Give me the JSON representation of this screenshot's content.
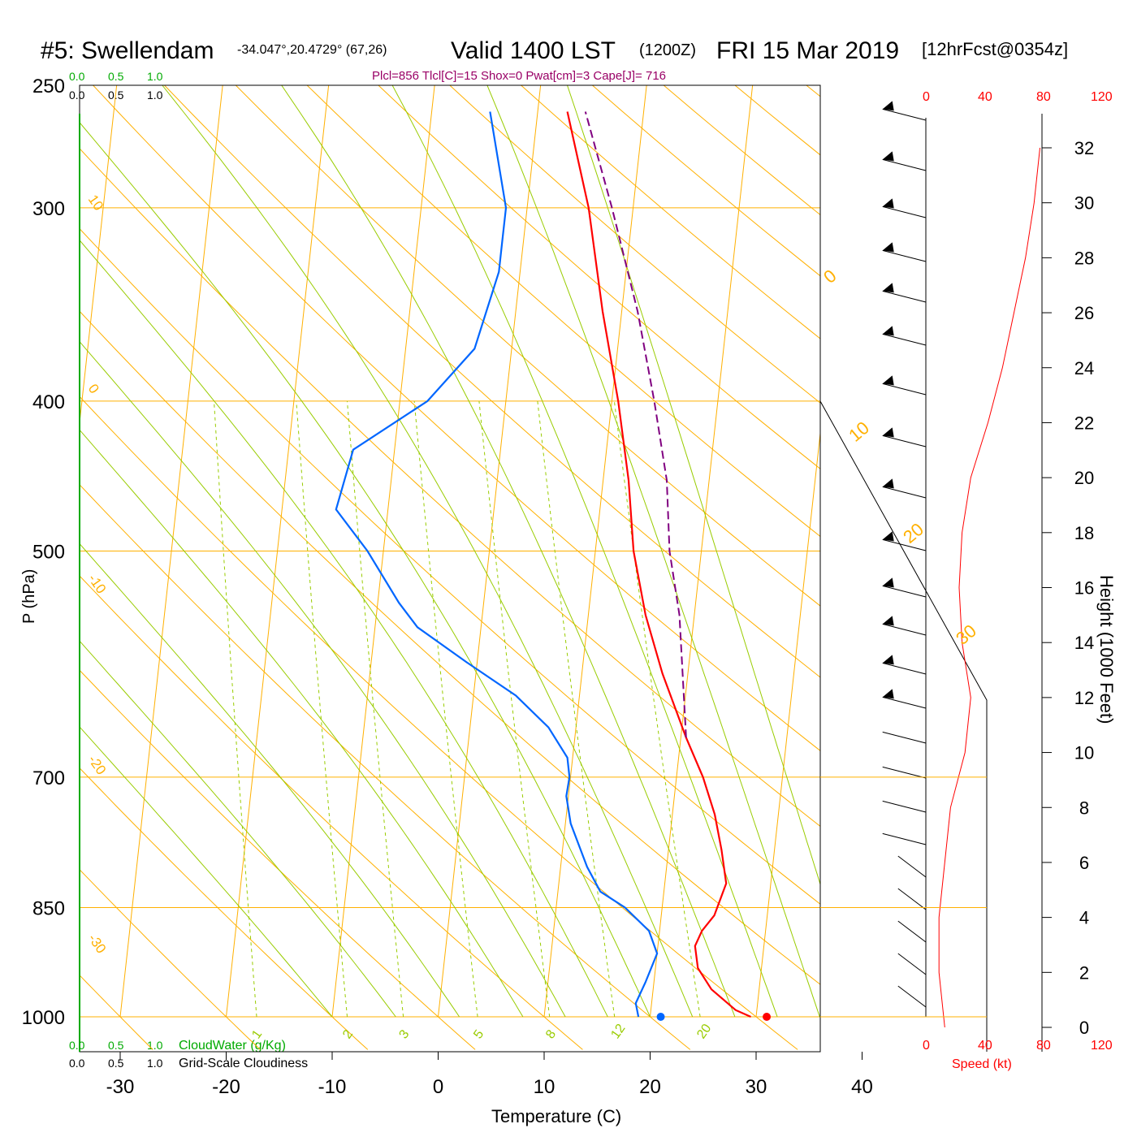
{
  "header": {
    "station": "#5: Swellendam",
    "coords": "-34.047°,20.4729° (67,26)",
    "valid": "Valid 1400 LST",
    "utc": "(1200Z)",
    "date": "FRI 15 Mar 2019",
    "forecast": "[12hrFcst@0354z]",
    "params": "Plcl=856 Tlcl[C]=15 Shox=0 Pwat[cm]=3 Cape[J]= 716"
  },
  "colors": {
    "temperature": "#ff0000",
    "dewpoint": "#0066ff",
    "parcel": "#800080",
    "isotherm": "#ffb000",
    "adiabat": "#99cc00",
    "cloud_green": "#00aa00",
    "params": "#990066"
  },
  "chart_data": {
    "type": "line",
    "title": "#5: Swellendam",
    "xlabel": "Temperature (C)",
    "ylabel": "P (hPa)",
    "xlim": [
      -34,
      46
    ],
    "log_pressure_axis": true,
    "pressure_ticks": [
      "250",
      "300",
      "400",
      "500",
      "700",
      "850",
      "1000"
    ],
    "temperature_ticks": [
      "-30",
      "-20",
      "-10",
      "0",
      "10",
      "20",
      "30",
      "40"
    ],
    "isotherm_labels": [
      "10",
      "0",
      "-10",
      "-20",
      "-30",
      "0",
      "10",
      "20",
      "30"
    ],
    "mixing_ratio_labels": [
      "1",
      "2",
      "3",
      "5",
      "8",
      "12",
      "20"
    ],
    "series": [
      {
        "key": "temperature",
        "points": [
          [
            1000,
            29.5
          ],
          [
            990,
            28
          ],
          [
            960,
            25.5
          ],
          [
            930,
            24
          ],
          [
            900,
            23.5
          ],
          [
            880,
            24
          ],
          [
            860,
            25
          ],
          [
            820,
            25.8
          ],
          [
            780,
            25
          ],
          [
            740,
            24
          ],
          [
            700,
            22.5
          ],
          [
            660,
            20.5
          ],
          [
            600,
            17.6
          ],
          [
            550,
            15.4
          ],
          [
            500,
            13.6
          ],
          [
            450,
            12.4
          ],
          [
            400,
            10.6
          ],
          [
            350,
            8.2
          ],
          [
            300,
            5.8
          ],
          [
            260,
            2.8
          ]
        ]
      },
      {
        "key": "dewpoint",
        "points": [
          [
            1000,
            18.9
          ],
          [
            980,
            18.5
          ],
          [
            950,
            19.2
          ],
          [
            910,
            20
          ],
          [
            880,
            19
          ],
          [
            850,
            16.5
          ],
          [
            830,
            14
          ],
          [
            800,
            12.5
          ],
          [
            750,
            10.5
          ],
          [
            720,
            9.8
          ],
          [
            700,
            9.9
          ],
          [
            680,
            9.5
          ],
          [
            650,
            7.4
          ],
          [
            620,
            4
          ],
          [
            590,
            -1
          ],
          [
            560,
            -6
          ],
          [
            540,
            -8
          ],
          [
            500,
            -11.5
          ],
          [
            470,
            -14.9
          ],
          [
            430,
            -13.9
          ],
          [
            400,
            -7.4
          ],
          [
            370,
            -3.5
          ],
          [
            330,
            -2
          ],
          [
            315,
            -2
          ],
          [
            300,
            -2
          ],
          [
            260,
            -4.5
          ]
        ]
      },
      {
        "key": "parcel",
        "points": [
          [
            660,
            20.5
          ],
          [
            600,
            19.5
          ],
          [
            550,
            18.6
          ],
          [
            500,
            17
          ],
          [
            450,
            16
          ],
          [
            400,
            14
          ],
          [
            350,
            11.5
          ],
          [
            300,
            8
          ],
          [
            260,
            4.5
          ]
        ]
      }
    ],
    "surface_temperature": 31,
    "surface_dewpoint": 21,
    "wind_axis": {
      "speed_ticks": [
        "0",
        "40",
        "80",
        "120"
      ],
      "label": "Speed (kt)"
    },
    "height_axis": {
      "label": "Height (1000 Feet)",
      "ticks": [
        "0",
        "2",
        "4",
        "6",
        "8",
        "10",
        "12",
        "14",
        "16",
        "18",
        "20",
        "22",
        "24",
        "26",
        "28",
        "30",
        "32"
      ]
    },
    "wind_speed_profile_kt": [
      [
        0,
        12
      ],
      [
        2,
        8
      ],
      [
        4,
        8
      ],
      [
        6,
        12
      ],
      [
        8,
        16
      ],
      [
        10,
        26
      ],
      [
        12,
        30
      ],
      [
        14,
        24
      ],
      [
        16,
        22
      ],
      [
        18,
        24
      ],
      [
        20,
        30
      ],
      [
        22,
        42
      ],
      [
        24,
        52
      ],
      [
        26,
        60
      ],
      [
        28,
        68
      ],
      [
        30,
        74
      ],
      [
        32,
        78
      ]
    ],
    "cloud_axis": {
      "green_ticks": [
        "0.0",
        "0.5",
        "1.0"
      ],
      "black_ticks": [
        "0.0",
        "0.5",
        "1.0"
      ],
      "cloudwater_label": "CloudWater (g/Kg)",
      "cloudiness_label": "Grid-Scale Cloudiness"
    }
  }
}
